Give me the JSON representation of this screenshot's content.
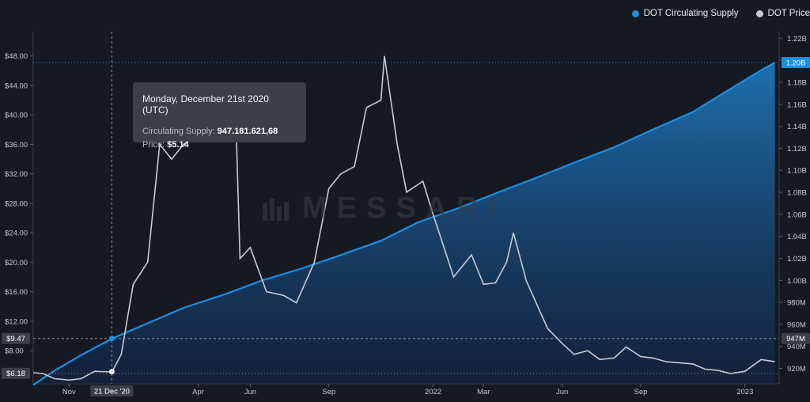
{
  "legend": {
    "supply_label": "DOT Circulating Supply",
    "price_label": "DOT Price",
    "supply_color": "#1a8fe3",
    "price_color": "#c8cbd2"
  },
  "watermark": "MESSARI",
  "tooltip": {
    "title": "Monday, December 21st 2020 (UTC)",
    "supply_label": "Circulating Supply:",
    "supply_value": "947.181.621,68",
    "price_label": "Price:",
    "price_value": "$5.14"
  },
  "markers": {
    "price_hover": "$6.18",
    "price_crosshair": "$9.47",
    "supply_hover": "947M",
    "supply_last": "1.20B",
    "date_hover": "21 Dec '20"
  },
  "chart_data": {
    "type": "line",
    "left_axis_ticks": [
      "$8.00",
      "$12.00",
      "$16.00",
      "$20.00",
      "$24.00",
      "$28.00",
      "$32.00",
      "$36.00",
      "$40.00",
      "$44.00",
      "$48.00"
    ],
    "left_axis_values": [
      8,
      12,
      16,
      20,
      24,
      28,
      32,
      36,
      40,
      44,
      48
    ],
    "right_axis_ticks": [
      "920M",
      "940M",
      "960M",
      "980M",
      "1.00B",
      "1.02B",
      "1.04B",
      "1.06B",
      "1.08B",
      "1.10B",
      "1.12B",
      "1.14B",
      "1.16B",
      "1.18B",
      "1.20B",
      "1.22B"
    ],
    "right_axis_values": [
      920,
      940,
      960,
      980,
      1000,
      1020,
      1040,
      1060,
      1080,
      1100,
      1120,
      1140,
      1160,
      1180,
      1200,
      1220
    ],
    "x_ticks": [
      "Nov",
      "Apr",
      "Jun",
      "Sep",
      "2022",
      "Mar",
      "Jun",
      "Sep",
      "2023"
    ],
    "x_tick_dates": [
      "2020-11-01",
      "2021-04-01",
      "2021-06-01",
      "2021-09-01",
      "2022-01-01",
      "2022-03-01",
      "2022-06-01",
      "2022-09-01",
      "2023-01-01"
    ],
    "x_range": [
      "2020-09-20",
      "2023-02-10"
    ],
    "ylim_price": [
      3.5,
      51.3
    ],
    "ylim_supply_millions": [
      906,
      1226
    ],
    "series": [
      {
        "name": "DOT Circulating Supply",
        "axis": "right",
        "unit": "millions",
        "points": [
          [
            "2020-09-20",
            905
          ],
          [
            "2020-10-15",
            918
          ],
          [
            "2020-11-15",
            932
          ],
          [
            "2020-12-21",
            947
          ],
          [
            "2021-02-01",
            961
          ],
          [
            "2021-03-15",
            975
          ],
          [
            "2021-05-01",
            987
          ],
          [
            "2021-06-15",
            1000
          ],
          [
            "2021-08-01",
            1011
          ],
          [
            "2021-09-15",
            1023
          ],
          [
            "2021-11-01",
            1036
          ],
          [
            "2021-12-15",
            1053
          ],
          [
            "2022-02-01",
            1066
          ],
          [
            "2022-03-15",
            1079
          ],
          [
            "2022-05-01",
            1093
          ],
          [
            "2022-06-15",
            1107
          ],
          [
            "2022-08-01",
            1121
          ],
          [
            "2022-09-15",
            1137
          ],
          [
            "2022-11-01",
            1153
          ],
          [
            "2022-12-15",
            1174
          ],
          [
            "2023-01-20",
            1191
          ],
          [
            "2023-02-05",
            1198
          ]
        ]
      },
      {
        "name": "DOT Price",
        "axis": "left",
        "unit": "USD",
        "points": [
          [
            "2020-09-20",
            5.0
          ],
          [
            "2020-10-01",
            4.9
          ],
          [
            "2020-10-15",
            4.2
          ],
          [
            "2020-11-01",
            4.0
          ],
          [
            "2020-11-15",
            4.2
          ],
          [
            "2020-12-01",
            5.2
          ],
          [
            "2020-12-21",
            5.1
          ],
          [
            "2021-01-01",
            7.5
          ],
          [
            "2021-01-15",
            17.0
          ],
          [
            "2021-02-01",
            20.0
          ],
          [
            "2021-02-15",
            36.0
          ],
          [
            "2021-03-01",
            34.0
          ],
          [
            "2021-03-15",
            36.0
          ],
          [
            "2021-04-15",
            38.0
          ],
          [
            "2021-05-15",
            40.0
          ],
          [
            "2021-05-20",
            20.5
          ],
          [
            "2021-06-01",
            22.0
          ],
          [
            "2021-06-20",
            16.0
          ],
          [
            "2021-07-10",
            15.5
          ],
          [
            "2021-07-25",
            14.5
          ],
          [
            "2021-08-15",
            20.0
          ],
          [
            "2021-09-01",
            30.0
          ],
          [
            "2021-09-15",
            32.0
          ],
          [
            "2021-10-01",
            33.0
          ],
          [
            "2021-10-15",
            41.0
          ],
          [
            "2021-11-01",
            42.0
          ],
          [
            "2021-11-05",
            48.0
          ],
          [
            "2021-11-20",
            36.0
          ],
          [
            "2021-12-01",
            29.5
          ],
          [
            "2021-12-20",
            31.0
          ],
          [
            "2022-01-01",
            26.5
          ],
          [
            "2022-01-25",
            18.0
          ],
          [
            "2022-02-15",
            21.0
          ],
          [
            "2022-03-01",
            17.0
          ],
          [
            "2022-03-15",
            17.2
          ],
          [
            "2022-03-28",
            20.0
          ],
          [
            "2022-04-05",
            24.0
          ],
          [
            "2022-04-20",
            17.5
          ],
          [
            "2022-05-15",
            11.0
          ],
          [
            "2022-06-01",
            9.0
          ],
          [
            "2022-06-15",
            7.5
          ],
          [
            "2022-07-01",
            8.0
          ],
          [
            "2022-07-15",
            6.8
          ],
          [
            "2022-08-01",
            7.0
          ],
          [
            "2022-08-15",
            8.5
          ],
          [
            "2022-09-01",
            7.2
          ],
          [
            "2022-09-15",
            7.0
          ],
          [
            "2022-10-01",
            6.5
          ],
          [
            "2022-11-01",
            6.2
          ],
          [
            "2022-11-15",
            5.5
          ],
          [
            "2022-12-01",
            5.3
          ],
          [
            "2022-12-15",
            4.9
          ],
          [
            "2023-01-01",
            5.2
          ],
          [
            "2023-01-20",
            6.8
          ],
          [
            "2023-02-05",
            6.5
          ]
        ]
      }
    ],
    "hover": {
      "date": "2020-12-21",
      "price": 5.14,
      "supply": 947.18
    }
  }
}
